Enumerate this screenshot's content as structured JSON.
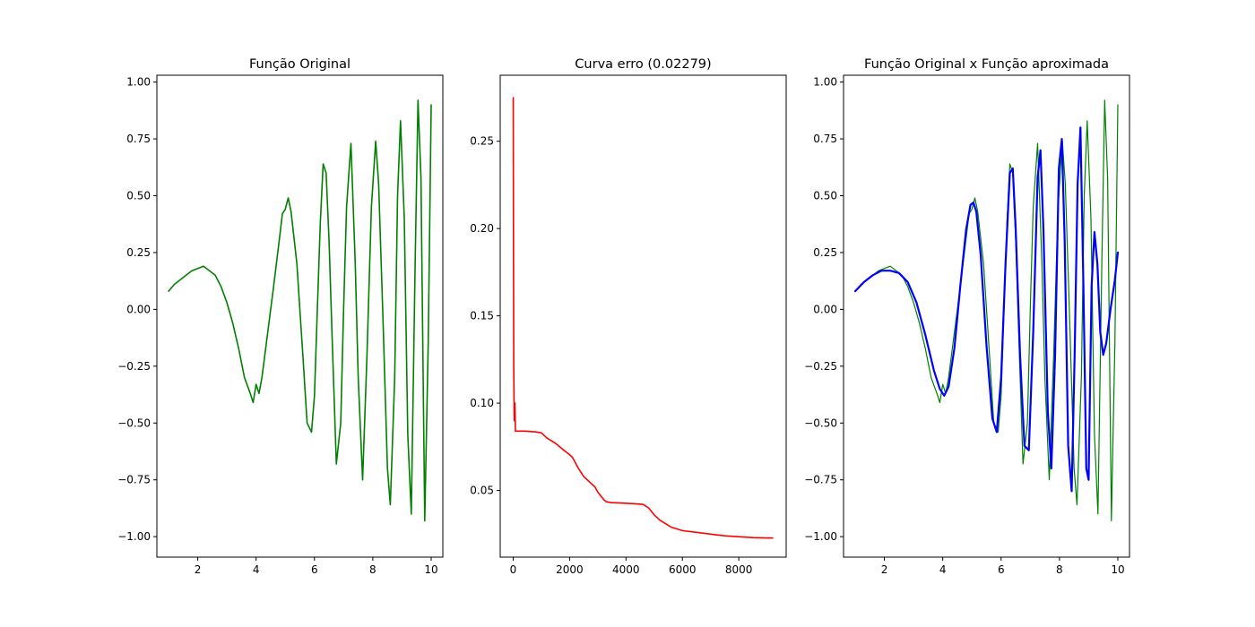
{
  "chart_data": [
    {
      "type": "line",
      "title": "Função Original",
      "xlabel": "",
      "ylabel": "",
      "xlim": [
        0.6,
        10.4
      ],
      "ylim": [
        -1.09,
        1.03
      ],
      "xticks": [
        2,
        4,
        6,
        8,
        10
      ],
      "xtick_labels": [
        "2",
        "4",
        "6",
        "8",
        "10"
      ],
      "yticks": [
        -1.0,
        -0.75,
        -0.5,
        -0.25,
        0.0,
        0.25,
        0.5,
        0.75,
        1.0
      ],
      "ytick_labels": [
        "−1.00",
        "−0.75",
        "−0.50",
        "−0.25",
        "0.00",
        "0.25",
        "0.50",
        "0.75",
        "1.00"
      ],
      "grid": false,
      "series": [
        {
          "color": "#008000",
          "x": [
            1.0,
            1.2,
            1.4,
            1.6,
            1.8,
            2.0,
            2.2,
            2.4,
            2.6,
            2.8,
            3.0,
            3.2,
            3.4,
            3.6,
            3.8,
            3.9,
            4.0,
            4.1,
            4.2,
            4.4,
            4.6,
            4.8,
            4.9,
            5.0,
            5.1,
            5.2,
            5.4,
            5.6,
            5.75,
            5.9,
            6.0,
            6.1,
            6.2,
            6.3,
            6.4,
            6.5,
            6.6,
            6.75,
            6.9,
            7.0,
            7.1,
            7.25,
            7.4,
            7.5,
            7.65,
            7.8,
            7.95,
            8.1,
            8.2,
            8.35,
            8.5,
            8.6,
            8.75,
            8.85,
            8.95,
            9.08,
            9.2,
            9.32,
            9.45,
            9.55,
            9.65,
            9.78,
            9.9,
            10.0
          ],
          "y": [
            0.08,
            0.11,
            0.13,
            0.15,
            0.17,
            0.18,
            0.19,
            0.17,
            0.15,
            0.1,
            0.03,
            -0.06,
            -0.17,
            -0.3,
            -0.37,
            -0.41,
            -0.33,
            -0.37,
            -0.3,
            -0.1,
            0.1,
            0.31,
            0.42,
            0.44,
            0.49,
            0.43,
            0.2,
            -0.2,
            -0.5,
            -0.54,
            -0.38,
            0.0,
            0.38,
            0.64,
            0.6,
            0.3,
            -0.1,
            -0.68,
            -0.5,
            0.0,
            0.45,
            0.73,
            0.2,
            -0.3,
            -0.75,
            -0.2,
            0.45,
            0.74,
            0.55,
            -0.05,
            -0.7,
            -0.86,
            -0.3,
            0.5,
            0.83,
            0.4,
            -0.55,
            -0.9,
            0.2,
            0.92,
            0.58,
            -0.93,
            -0.15,
            0.9
          ]
        }
      ]
    },
    {
      "type": "line",
      "title": "Curva erro (0.02279)",
      "xlabel": "",
      "ylabel": "",
      "xlim": [
        -460,
        9680
      ],
      "ylim": [
        0.0118,
        0.2878
      ],
      "xticks": [
        0,
        2000,
        4000,
        6000,
        8000
      ],
      "xtick_labels": [
        "0",
        "2000",
        "4000",
        "6000",
        "8000"
      ],
      "yticks": [
        0.05,
        0.1,
        0.15,
        0.2,
        0.25
      ],
      "ytick_labels": [
        "0.05",
        "0.10",
        "0.15",
        "0.20",
        "0.25"
      ],
      "grid": false,
      "series": [
        {
          "color": "#ff0000",
          "x": [
            0,
            20,
            40,
            60,
            80,
            100,
            150,
            400,
            800,
            1000,
            1200,
            1500,
            1800,
            2000,
            2100,
            2200,
            2300,
            2500,
            2700,
            2900,
            3000,
            3100,
            3200,
            3300,
            3500,
            3800,
            4200,
            4600,
            4800,
            4900,
            5000,
            5200,
            5400,
            5600,
            6000,
            6500,
            7000,
            7500,
            8000,
            8500,
            9000,
            9200
          ],
          "y": [
            0.275,
            0.12,
            0.09,
            0.1,
            0.084,
            0.084,
            0.084,
            0.084,
            0.0835,
            0.083,
            0.08,
            0.077,
            0.073,
            0.0705,
            0.069,
            0.066,
            0.063,
            0.058,
            0.055,
            0.052,
            0.049,
            0.047,
            0.045,
            0.0435,
            0.043,
            0.0428,
            0.0425,
            0.042,
            0.04,
            0.038,
            0.036,
            0.033,
            0.031,
            0.029,
            0.027,
            0.026,
            0.025,
            0.024,
            0.0235,
            0.023,
            0.0228,
            0.0228
          ]
        }
      ]
    },
    {
      "type": "line",
      "title": "Função Original x Função aproximada",
      "xlabel": "",
      "ylabel": "",
      "xlim": [
        0.6,
        10.4
      ],
      "ylim": [
        -1.09,
        1.03
      ],
      "xticks": [
        2,
        4,
        6,
        8,
        10
      ],
      "xtick_labels": [
        "2",
        "4",
        "6",
        "8",
        "10"
      ],
      "yticks": [
        -1.0,
        -0.75,
        -0.5,
        -0.25,
        0.0,
        0.25,
        0.5,
        0.75,
        1.0
      ],
      "ytick_labels": [
        "−1.00",
        "−0.75",
        "−0.50",
        "−0.25",
        "0.00",
        "0.25",
        "0.50",
        "0.75",
        "1.00"
      ],
      "grid": false,
      "series": [
        {
          "color": "#008000",
          "x": [
            1.0,
            1.2,
            1.4,
            1.6,
            1.8,
            2.0,
            2.2,
            2.4,
            2.6,
            2.8,
            3.0,
            3.2,
            3.4,
            3.6,
            3.8,
            3.9,
            4.0,
            4.1,
            4.2,
            4.4,
            4.6,
            4.8,
            4.9,
            5.0,
            5.1,
            5.2,
            5.4,
            5.6,
            5.75,
            5.9,
            6.0,
            6.1,
            6.2,
            6.3,
            6.4,
            6.5,
            6.6,
            6.75,
            6.9,
            7.0,
            7.1,
            7.25,
            7.4,
            7.5,
            7.65,
            7.8,
            7.95,
            8.1,
            8.2,
            8.35,
            8.5,
            8.6,
            8.75,
            8.85,
            8.95,
            9.08,
            9.2,
            9.32,
            9.45,
            9.55,
            9.65,
            9.78,
            9.9,
            10.0
          ],
          "y": [
            0.08,
            0.11,
            0.13,
            0.15,
            0.17,
            0.18,
            0.19,
            0.17,
            0.15,
            0.1,
            0.03,
            -0.06,
            -0.17,
            -0.3,
            -0.37,
            -0.41,
            -0.33,
            -0.37,
            -0.3,
            -0.1,
            0.1,
            0.31,
            0.42,
            0.44,
            0.49,
            0.43,
            0.2,
            -0.2,
            -0.5,
            -0.54,
            -0.38,
            0.0,
            0.38,
            0.64,
            0.6,
            0.3,
            -0.1,
            -0.68,
            -0.5,
            0.0,
            0.45,
            0.73,
            0.2,
            -0.3,
            -0.75,
            -0.2,
            0.45,
            0.74,
            0.55,
            -0.05,
            -0.7,
            -0.86,
            -0.3,
            0.5,
            0.83,
            0.4,
            -0.55,
            -0.9,
            0.2,
            0.92,
            0.58,
            -0.93,
            -0.15,
            0.9
          ]
        },
        {
          "color": "#0000ff",
          "x": [
            1.0,
            1.3,
            1.6,
            1.9,
            2.2,
            2.5,
            2.8,
            3.1,
            3.4,
            3.7,
            3.9,
            4.05,
            4.2,
            4.4,
            4.6,
            4.8,
            4.95,
            5.05,
            5.15,
            5.3,
            5.5,
            5.7,
            5.85,
            6.0,
            6.15,
            6.3,
            6.4,
            6.5,
            6.65,
            6.8,
            6.95,
            7.1,
            7.25,
            7.35,
            7.45,
            7.6,
            7.72,
            7.85,
            7.98,
            8.08,
            8.18,
            8.3,
            8.42,
            8.52,
            8.62,
            8.72,
            8.82,
            8.92,
            9.0,
            9.1,
            9.2,
            9.3,
            9.4,
            9.5,
            9.6,
            9.75,
            9.9,
            10.0
          ],
          "y": [
            0.08,
            0.12,
            0.15,
            0.17,
            0.17,
            0.16,
            0.12,
            0.03,
            -0.11,
            -0.27,
            -0.35,
            -0.38,
            -0.34,
            -0.17,
            0.1,
            0.35,
            0.46,
            0.47,
            0.43,
            0.24,
            -0.16,
            -0.48,
            -0.54,
            -0.3,
            0.2,
            0.6,
            0.62,
            0.35,
            -0.2,
            -0.6,
            -0.62,
            -0.1,
            0.58,
            0.7,
            0.35,
            -0.45,
            -0.7,
            -0.2,
            0.62,
            0.75,
            0.3,
            -0.6,
            -0.8,
            -0.2,
            0.55,
            0.8,
            0.1,
            -0.7,
            -0.75,
            0.1,
            0.34,
            0.2,
            -0.1,
            -0.2,
            -0.15,
            0.0,
            0.13,
            0.25
          ]
        }
      ]
    }
  ]
}
